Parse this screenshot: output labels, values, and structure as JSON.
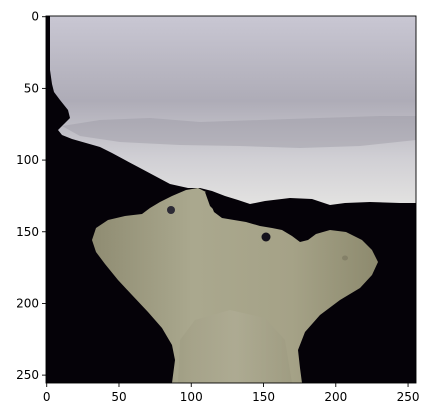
{
  "image_panel": {
    "x_axis": {
      "ticks": [
        0,
        50,
        100,
        150,
        200,
        250
      ],
      "tick_labels": [
        "0",
        "50",
        "100",
        "150",
        "200",
        "250"
      ],
      "range": [
        -0.5,
        255.5
      ]
    },
    "y_axis": {
      "ticks": [
        0,
        50,
        100,
        150,
        200,
        250
      ],
      "tick_labels": [
        "0",
        "50",
        "100",
        "150",
        "200",
        "250"
      ],
      "range": [
        -0.5,
        255.5
      ],
      "inverted": true
    },
    "colors": {
      "background": "#050208",
      "upper_region": "#b8b6bf",
      "lower_region": "#a7a489",
      "frame": "#000000"
    }
  }
}
